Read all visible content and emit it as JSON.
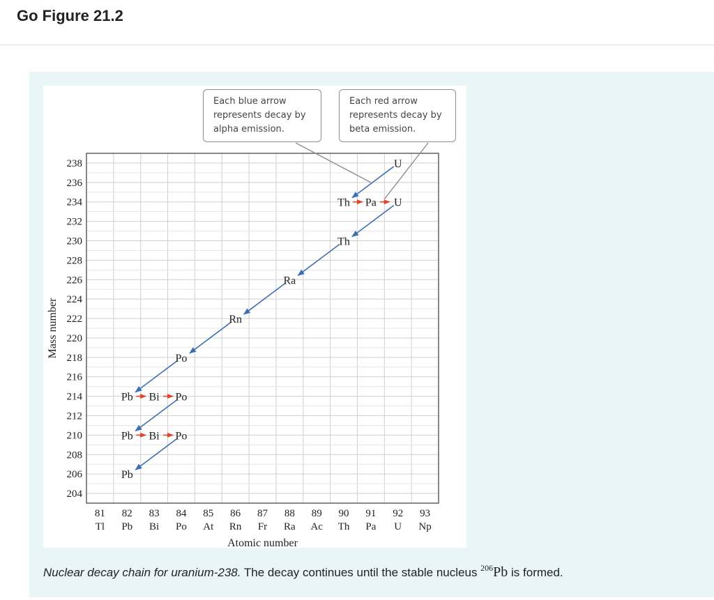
{
  "page": {
    "heading": "Go Figure 21.2"
  },
  "callouts": {
    "alpha": "Each blue arrow represents decay by alpha emission.",
    "beta": "Each red arrow represents decay by beta emission."
  },
  "caption": {
    "italic": "Nuclear decay chain for uranium-238.",
    "text_before": " The decay continues until the stable nucleus ",
    "isotope_mass": "206",
    "isotope_symbol": "Pb",
    "text_after": " is formed."
  },
  "colors": {
    "alpha_arrow": "#3d6fb0",
    "beta_arrow": "#e0442e",
    "grid": "#cfcfcf",
    "panel_bg": "#eaf5f7"
  },
  "chart_data": {
    "type": "scatter",
    "xlabel": "Atomic number",
    "ylabel": "Mass number",
    "xlim": [
      81,
      93
    ],
    "ylim": [
      204,
      238
    ],
    "x_ticks": [
      {
        "z": 81,
        "symbol": "Tl"
      },
      {
        "z": 82,
        "symbol": "Pb"
      },
      {
        "z": 83,
        "symbol": "Bi"
      },
      {
        "z": 84,
        "symbol": "Po"
      },
      {
        "z": 85,
        "symbol": "At"
      },
      {
        "z": 86,
        "symbol": "Rn"
      },
      {
        "z": 87,
        "symbol": "Fr"
      },
      {
        "z": 88,
        "symbol": "Ra"
      },
      {
        "z": 89,
        "symbol": "Ac"
      },
      {
        "z": 90,
        "symbol": "Th"
      },
      {
        "z": 91,
        "symbol": "Pa"
      },
      {
        "z": 92,
        "symbol": "U"
      },
      {
        "z": 93,
        "symbol": "Np"
      }
    ],
    "y_ticks": [
      204,
      206,
      208,
      210,
      212,
      214,
      216,
      218,
      220,
      222,
      224,
      226,
      228,
      230,
      232,
      234,
      236,
      238
    ],
    "nuclides": [
      {
        "z": 92,
        "a": 238,
        "symbol": "U"
      },
      {
        "z": 90,
        "a": 234,
        "symbol": "Th"
      },
      {
        "z": 91,
        "a": 234,
        "symbol": "Pa"
      },
      {
        "z": 92,
        "a": 234,
        "symbol": "U"
      },
      {
        "z": 90,
        "a": 230,
        "symbol": "Th"
      },
      {
        "z": 88,
        "a": 226,
        "symbol": "Ra"
      },
      {
        "z": 86,
        "a": 222,
        "symbol": "Rn"
      },
      {
        "z": 84,
        "a": 218,
        "symbol": "Po"
      },
      {
        "z": 82,
        "a": 214,
        "symbol": "Pb"
      },
      {
        "z": 83,
        "a": 214,
        "symbol": "Bi"
      },
      {
        "z": 84,
        "a": 214,
        "symbol": "Po"
      },
      {
        "z": 82,
        "a": 210,
        "symbol": "Pb"
      },
      {
        "z": 83,
        "a": 210,
        "symbol": "Bi"
      },
      {
        "z": 84,
        "a": 210,
        "symbol": "Po"
      },
      {
        "z": 82,
        "a": 206,
        "symbol": "Pb"
      }
    ],
    "decays": [
      {
        "type": "alpha",
        "from": [
          92,
          238
        ],
        "to": [
          90,
          234
        ]
      },
      {
        "type": "beta",
        "from": [
          90,
          234
        ],
        "to": [
          91,
          234
        ]
      },
      {
        "type": "beta",
        "from": [
          91,
          234
        ],
        "to": [
          92,
          234
        ]
      },
      {
        "type": "alpha",
        "from": [
          92,
          234
        ],
        "to": [
          90,
          230
        ]
      },
      {
        "type": "alpha",
        "from": [
          90,
          230
        ],
        "to": [
          88,
          226
        ]
      },
      {
        "type": "alpha",
        "from": [
          88,
          226
        ],
        "to": [
          86,
          222
        ]
      },
      {
        "type": "alpha",
        "from": [
          86,
          222
        ],
        "to": [
          84,
          218
        ]
      },
      {
        "type": "alpha",
        "from": [
          84,
          218
        ],
        "to": [
          82,
          214
        ]
      },
      {
        "type": "beta",
        "from": [
          82,
          214
        ],
        "to": [
          83,
          214
        ]
      },
      {
        "type": "beta",
        "from": [
          83,
          214
        ],
        "to": [
          84,
          214
        ]
      },
      {
        "type": "alpha",
        "from": [
          84,
          214
        ],
        "to": [
          82,
          210
        ]
      },
      {
        "type": "beta",
        "from": [
          82,
          210
        ],
        "to": [
          83,
          210
        ]
      },
      {
        "type": "beta",
        "from": [
          83,
          210
        ],
        "to": [
          84,
          210
        ]
      },
      {
        "type": "alpha",
        "from": [
          84,
          210
        ],
        "to": [
          82,
          206
        ]
      }
    ],
    "grid": true,
    "legend": "callouts-top-right"
  }
}
